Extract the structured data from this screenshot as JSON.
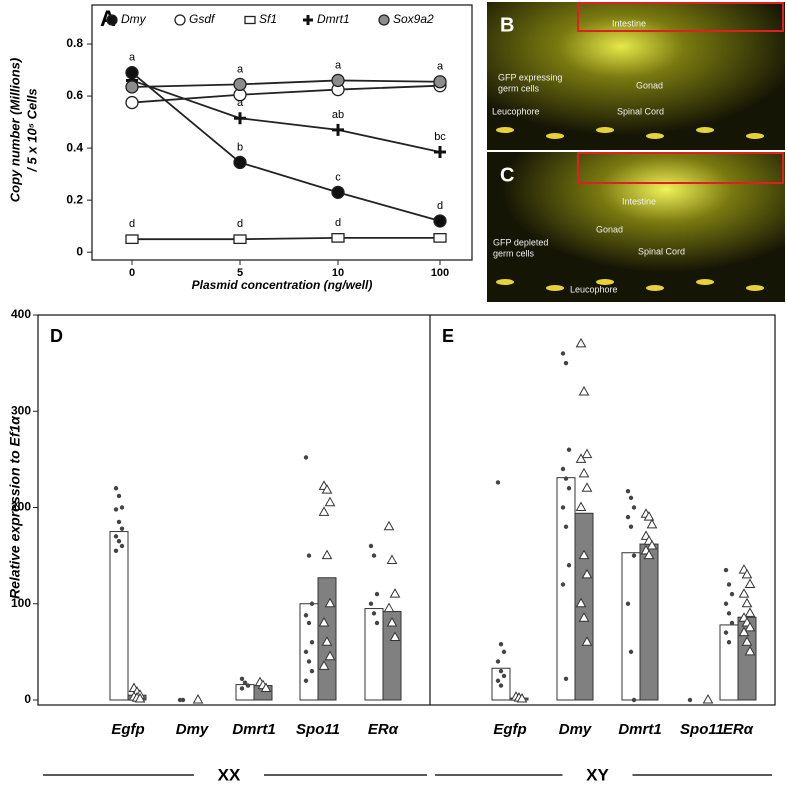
{
  "chart_data": [
    {
      "type": "line",
      "panel": "A",
      "y_label": [
        "Copy number (Millions)",
        "/ 5 x 10⁵ Cells"
      ],
      "x_label": "Plasmid concentration (ng/well)",
      "categories": [
        "0",
        "5",
        "10",
        "100"
      ],
      "ylim": [
        -0.03,
        0.95
      ],
      "yticks": [
        0,
        0.2,
        0.4,
        0.6,
        0.8
      ],
      "series": [
        {
          "name": "Dmy",
          "color": "#111111",
          "marker": "circle",
          "values": [
            0.69,
            0.345,
            0.23,
            0.12
          ],
          "letters": [
            "a",
            "b",
            "c",
            "d"
          ]
        },
        {
          "name": "Gsdf",
          "color": "#ffffff",
          "marker": "circle",
          "values": [
            0.575,
            0.605,
            0.625,
            0.64
          ],
          "letters": [
            null,
            null,
            null,
            null
          ]
        },
        {
          "name": "Sf1",
          "color": "#ffffff",
          "marker": "square",
          "values": [
            0.05,
            0.05,
            0.055,
            0.055
          ],
          "letters": [
            "d",
            "d",
            "d",
            "d"
          ]
        },
        {
          "name": "Dmrt1",
          "color": "#111111",
          "marker": "plus",
          "values": [
            0.66,
            0.515,
            0.47,
            0.385
          ],
          "letters": [
            null,
            "a",
            "ab",
            "bc"
          ]
        },
        {
          "name": "Sox9a2",
          "color": "#8c8c8c",
          "marker": "circle",
          "values": [
            0.635,
            0.645,
            0.66,
            0.655
          ],
          "letters": [
            null,
            "a",
            "a",
            "a"
          ]
        }
      ]
    },
    {
      "type": "bar",
      "panel": "D",
      "group_label": "XX",
      "y_label": "Relative expression to Ef1α",
      "categories": [
        "Egfp",
        "Dmy",
        "Dmrt1",
        "Spo11",
        "ERα"
      ],
      "ylim": [
        0,
        400
      ],
      "yticks": [
        0,
        100,
        200,
        300,
        400
      ],
      "series": [
        {
          "color": "#ffffff",
          "point": "dot",
          "values": [
            175,
            0,
            16,
            100,
            95
          ],
          "points": [
            [
              220,
              212,
              200,
              198,
              185,
              178,
              170,
              165,
              160,
              155
            ],
            [
              0,
              0
            ],
            [
              22,
              18,
              15,
              12
            ],
            [
              252,
              150,
              100,
              88,
              80,
              60,
              50,
              40,
              30,
              20
            ],
            [
              160,
              150,
              110,
              100,
              90,
              80
            ]
          ]
        },
        {
          "color": "#808080",
          "point": "triangle",
          "values": [
            5,
            0,
            15,
            127,
            92
          ],
          "points": [
            [
              12,
              8,
              5,
              3,
              2,
              1
            ],
            [
              0
            ],
            [
              18,
              15,
              12
            ],
            [
              222,
              218,
              205,
              195,
              150,
              100,
              80,
              60,
              45,
              35
            ],
            [
              180,
              145,
              110,
              95,
              80,
              65
            ]
          ]
        }
      ]
    },
    {
      "type": "bar",
      "panel": "E",
      "group_label": "XY",
      "categories": [
        "Egfp",
        "Dmy",
        "Dmrt1",
        "Spo11",
        "ERα"
      ],
      "ylim": [
        0,
        400
      ],
      "series": [
        {
          "color": "#ffffff",
          "point": "dot",
          "values": [
            33,
            231,
            153,
            0,
            78
          ],
          "points": [
            [
              226,
              58,
              50,
              40,
              30,
              25,
              20,
              15
            ],
            [
              360,
              350,
              260,
              240,
              230,
              220,
              200,
              180,
              140,
              120,
              22
            ],
            [
              217,
              210,
              200,
              190,
              180,
              150,
              100,
              50,
              0
            ],
            [
              0
            ],
            [
              135,
              120,
              110,
              100,
              90,
              80,
              70,
              60
            ]
          ]
        },
        {
          "color": "#808080",
          "point": "triangle",
          "values": [
            2,
            194,
            162,
            0,
            86
          ],
          "points": [
            [
              3,
              2,
              1
            ],
            [
              370,
              320,
              255,
              250,
              235,
              220,
              200,
              150,
              130,
              100,
              85,
              60
            ],
            [
              193,
              190,
              182,
              170,
              165,
              160,
              155,
              150
            ],
            [
              0
            ],
            [
              135,
              130,
              120,
              110,
              100,
              90,
              85,
              80,
              75,
              70,
              60,
              50
            ]
          ]
        }
      ]
    }
  ],
  "images": [
    {
      "panel": "B",
      "labels": [
        "Intestine",
        "GFP expressing",
        "germ cells",
        "Gonad",
        "Leucophore",
        "Spinal Cord"
      ]
    },
    {
      "panel": "C",
      "labels": [
        "Intestine",
        "Gonad",
        "GFP depleted",
        "germ cells",
        "Spinal Cord",
        "Leucophore"
      ]
    }
  ]
}
